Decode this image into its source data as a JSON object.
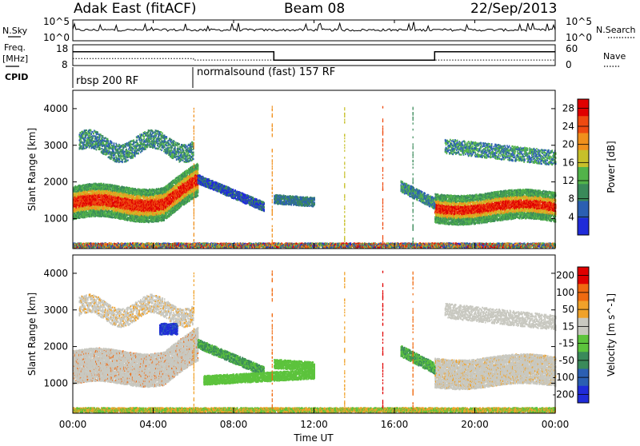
{
  "header": {
    "title": "Adak East (fitACF)",
    "beam": "Beam 08",
    "date": "22/Sep/2013"
  },
  "sidebars": {
    "nsky": "N.Sky",
    "freq_line1": "Freq.",
    "freq_line2": "[MHz]",
    "cpid": "CPID",
    "nsearch": "N.Search",
    "nave": "Nave",
    "nsky_ticks": [
      "10^5",
      "10^0"
    ],
    "freq_ticks": [
      "18",
      "8"
    ],
    "nave_ticks": [
      "60",
      "0"
    ]
  },
  "cpid_programs": [
    {
      "label": "rbsp 200 RF",
      "start": "00:00",
      "end": "06:00"
    },
    {
      "label": "normalsound (fast) 157 RF",
      "start": "06:00",
      "end": "24:00"
    }
  ],
  "chart_data": [
    {
      "type": "line",
      "name": "N.Sky / N.Search",
      "y_ticks_left": [
        "10^5",
        "10^0"
      ],
      "y_ticks_right": [
        "10^5",
        "10^0"
      ]
    },
    {
      "type": "line",
      "name": "Freq / Nave",
      "y_ticks_left": [
        18,
        8
      ],
      "y_ticks_right": [
        60,
        0
      ],
      "freq_steps": [
        {
          "x_start": 0,
          "x_end": 10,
          "mhz": 14.6
        },
        {
          "x_start": 10,
          "x_end": 18,
          "mhz": 10.6
        },
        {
          "x_start": 18,
          "x_end": 24,
          "mhz": 14.6
        }
      ],
      "nave_steps": [
        {
          "x_start": 0,
          "x_end": 6,
          "value": 20
        },
        {
          "x_start": 6,
          "x_end": 24,
          "value": 16
        }
      ]
    },
    {
      "type": "heatmap",
      "ylabel": "Slant Range [km]",
      "y_ticks": [
        1000,
        2000,
        3000,
        4000
      ],
      "ylim": [
        180,
        4500
      ],
      "colorbar_label": "Power [dB]",
      "colorbar_ticks": [
        4,
        8,
        12,
        16,
        20,
        24,
        28
      ],
      "colorbar_range": [
        0,
        30
      ],
      "colors": [
        "#1f2bd9",
        "#2b5fb2",
        "#3a8a5a",
        "#52b34a",
        "#c7c02a",
        "#f0901c",
        "#ee4a10",
        "#e00000"
      ]
    },
    {
      "type": "heatmap",
      "ylabel": "Slant Range [km]",
      "y_ticks": [
        1000,
        2000,
        3000,
        4000
      ],
      "ylim": [
        180,
        4500
      ],
      "colorbar_label": "Velocity [m s^-1]",
      "colorbar_ticks": [
        "200",
        "100",
        "50",
        "15",
        "-15",
        "-50",
        "-100",
        "-200"
      ],
      "colors": [
        "#1f2bd9",
        "#2b5fb2",
        "#3a8a5a",
        "#5cc33c",
        "#c8c8c0",
        "#f0a22a",
        "#f06a10",
        "#e00000"
      ]
    }
  ],
  "x_axis": {
    "label": "Time UT",
    "ticks": [
      "00:00",
      "04:00",
      "08:00",
      "12:00",
      "16:00",
      "20:00",
      "00:00"
    ],
    "range_hours": [
      0,
      24
    ]
  }
}
